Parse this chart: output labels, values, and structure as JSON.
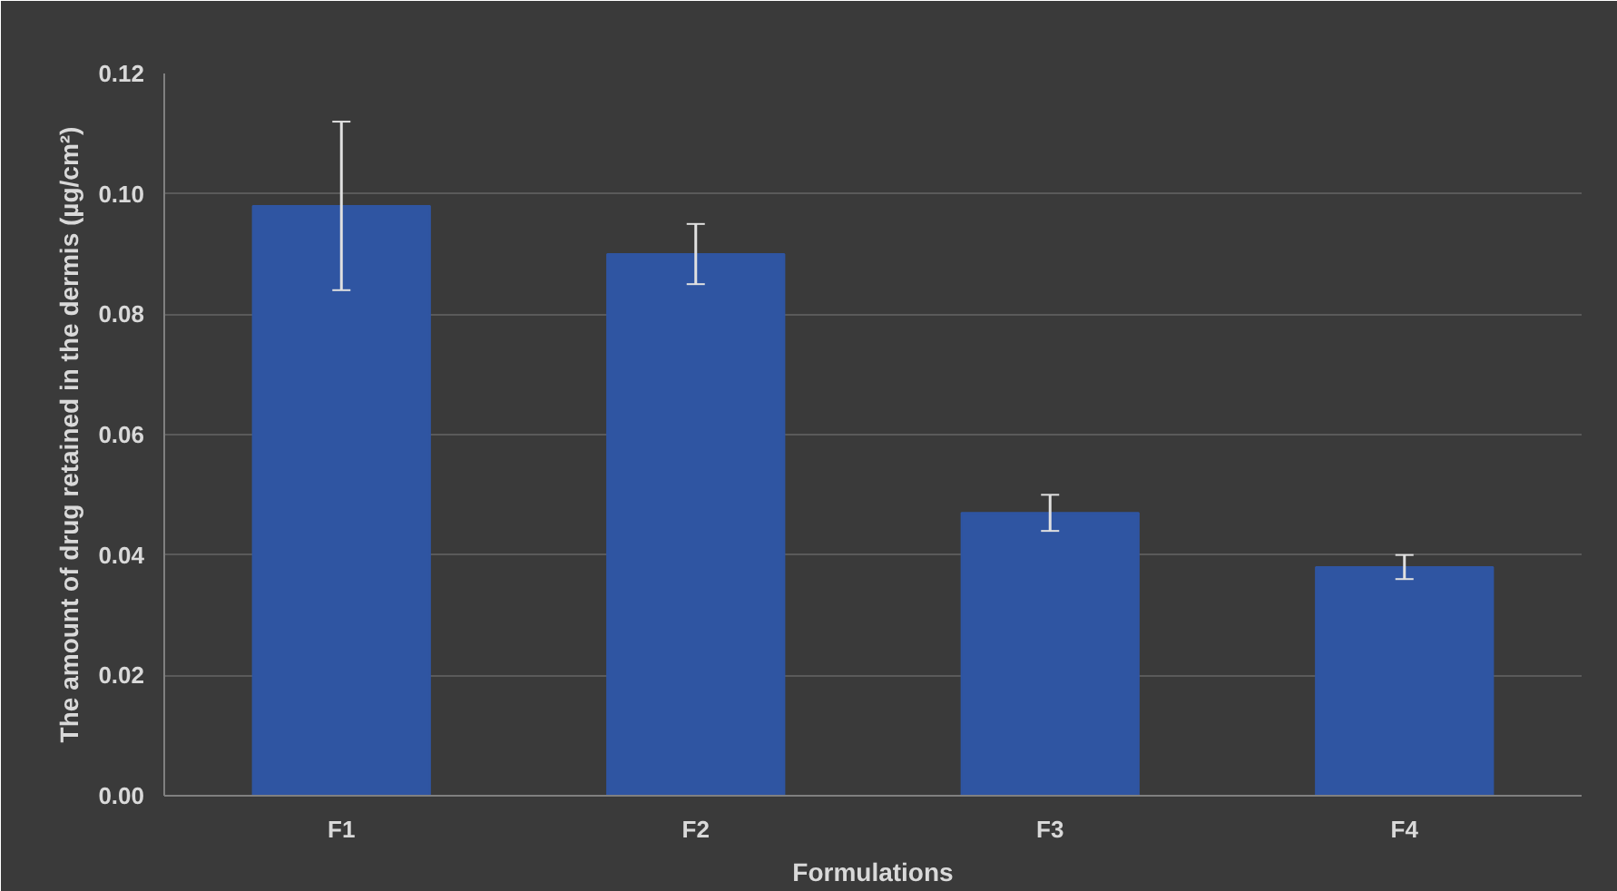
{
  "chart_data": {
    "type": "bar",
    "xlabel": "Formulations",
    "ylabel": "The amount of drug retained in the dermis (µg/cm²)",
    "categories": [
      "F1",
      "F2",
      "F3",
      "F4"
    ],
    "values": [
      0.098,
      0.09,
      0.047,
      0.038
    ],
    "errors": [
      0.014,
      0.005,
      0.003,
      0.002
    ],
    "color": "#2f55a2",
    "ylim": [
      0,
      0.12
    ],
    "yticks": [
      {
        "value": 0,
        "label": "0.00"
      },
      {
        "value": 0.02,
        "label": "0.02"
      },
      {
        "value": 0.04,
        "label": "0.04"
      },
      {
        "value": 0.06,
        "label": "0.06"
      },
      {
        "value": 0.08,
        "label": "0.08"
      },
      {
        "value": 0.1,
        "label": "0.10"
      },
      {
        "value": 0.12,
        "label": "0.12"
      }
    ],
    "grid": "y"
  }
}
